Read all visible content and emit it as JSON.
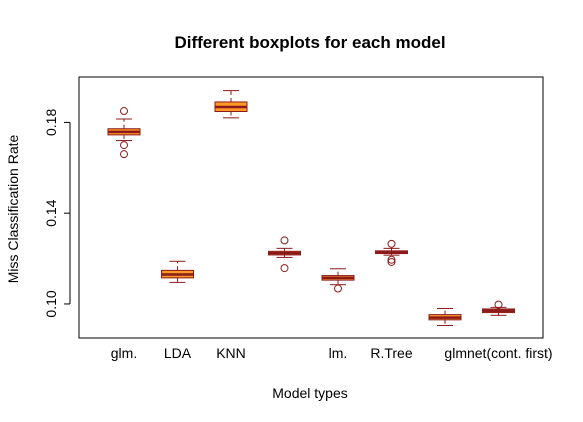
{
  "chart_data": {
    "type": "boxplot",
    "title": "Different boxplots for each model",
    "xlabel": "Model types",
    "ylabel": "Miss Classification Rate",
    "ylim": [
      0.085,
      0.2
    ],
    "yticks": [
      "0.10",
      "0.14",
      "0.18"
    ],
    "ytick_values": [
      0.1,
      0.14,
      0.18
    ],
    "categories": [
      "glm.",
      "LDA",
      "KNN",
      "",
      "lm.",
      "R.Tree",
      "",
      "glmnet(cont. first)"
    ],
    "boxes": [
      {
        "min": 0.172,
        "q1": 0.1745,
        "median": 0.1758,
        "q3": 0.1772,
        "max": 0.1815,
        "outliers": [
          0.185,
          0.17,
          0.166
        ]
      },
      {
        "min": 0.1095,
        "q1": 0.1115,
        "median": 0.113,
        "q3": 0.1148,
        "max": 0.1188,
        "outliers": []
      },
      {
        "min": 0.182,
        "q1": 0.1848,
        "median": 0.1868,
        "q3": 0.189,
        "max": 0.194,
        "outliers": []
      },
      {
        "min": 0.1205,
        "q1": 0.1216,
        "median": 0.1224,
        "q3": 0.1232,
        "max": 0.1245,
        "outliers": [
          0.128,
          0.1158
        ]
      },
      {
        "min": 0.1085,
        "q1": 0.1105,
        "median": 0.1115,
        "q3": 0.1125,
        "max": 0.1155,
        "outliers": [
          0.1068
        ]
      },
      {
        "min": 0.1215,
        "q1": 0.1222,
        "median": 0.1228,
        "q3": 0.1234,
        "max": 0.1245,
        "outliers": [
          0.1265,
          0.1195,
          0.1185
        ]
      },
      {
        "min": 0.0905,
        "q1": 0.093,
        "median": 0.094,
        "q3": 0.0953,
        "max": 0.098,
        "outliers": []
      },
      {
        "min": 0.095,
        "q1": 0.0962,
        "median": 0.097,
        "q3": 0.0978,
        "max": 0.0985,
        "outliers": [
          0.0997
        ]
      }
    ],
    "grid": false,
    "legend": "none",
    "colors": {
      "box_fill": "#ff9926",
      "box_border": "#8b1a1a",
      "median": "#8b1a1a",
      "whisker": "#8b1a1a",
      "outlier": "#8b1a1a",
      "axis": "#000000"
    }
  }
}
